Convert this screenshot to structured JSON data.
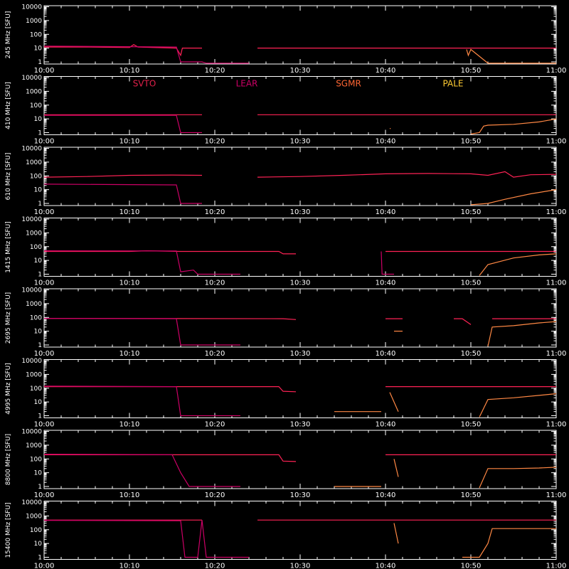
{
  "chart_data": {
    "type": "line",
    "x_ticks": [
      "10:00",
      "10:10",
      "10:20",
      "10:30",
      "10:40",
      "10:50",
      "11:00"
    ],
    "x_range_minutes": [
      0,
      60
    ],
    "y_ticks": [
      "1",
      "10",
      "100",
      "1000",
      "10000"
    ],
    "y_scale": "log",
    "ylim": [
      0.7,
      12000
    ],
    "legend": {
      "placement": "top",
      "entries": [
        {
          "name": "SVTO",
          "color": "#e0204a"
        },
        {
          "name": "LEAR",
          "color": "#cc0066"
        },
        {
          "name": "SGMR",
          "color": "#ff6633"
        },
        {
          "name": "PALE",
          "color": "#ffcc33"
        }
      ]
    },
    "panels": [
      {
        "ylabel": "245 MHz [SFU]",
        "series": [
          {
            "name": "SVTO",
            "color": "#ff2255",
            "points": [
              [
                0,
                12
              ],
              [
                5,
                12
              ],
              [
                10,
                11
              ],
              [
                10.5,
                18
              ],
              [
                11,
                12
              ],
              [
                15.5,
                10
              ],
              [
                16,
                3
              ],
              [
                16.2,
                10
              ],
              [
                18.5,
                10
              ],
              [
                19,
                null
              ],
              [
                24.5,
                null
              ],
              [
                25,
                10
              ],
              [
                60,
                10
              ]
            ]
          },
          {
            "name": "LEAR",
            "color": "#cc0066",
            "points": [
              [
                0,
                14
              ],
              [
                15.5,
                12
              ],
              [
                16,
                1
              ],
              [
                17,
                1
              ],
              [
                18.5,
                1
              ],
              [
                19,
                0.8
              ],
              [
                24,
                0.8
              ],
              [
                25,
                null
              ]
            ]
          },
          {
            "name": "PALE",
            "color": "#ff8844",
            "points": [
              [
                49.5,
                8
              ],
              [
                49.7,
                3
              ],
              [
                50,
                8
              ],
              [
                52,
                0.8
              ],
              [
                60,
                0.8
              ]
            ]
          }
        ]
      },
      {
        "ylabel": "410 MHz [SFU]",
        "series": [
          {
            "name": "SVTO",
            "color": "#ff2255",
            "points": [
              [
                0,
                20
              ],
              [
                15.5,
                20
              ],
              [
                16,
                20
              ],
              [
                18.5,
                20
              ],
              [
                19,
                null
              ],
              [
                25,
                20
              ],
              [
                60,
                20
              ]
            ]
          },
          {
            "name": "LEAR",
            "color": "#cc0066",
            "points": [
              [
                0,
                18
              ],
              [
                15.5,
                18
              ],
              [
                16,
                1
              ],
              [
                18.5,
                1
              ],
              [
                19,
                null
              ]
            ]
          },
          {
            "name": "SGMR",
            "color": "#ff8844",
            "points": [
              [
                40.5,
                2
              ],
              [
                40.6,
                2
              ]
            ]
          },
          {
            "name": "PALE",
            "color": "#ff8844",
            "points": [
              [
                50,
                0.8
              ],
              [
                51,
                1
              ],
              [
                51.5,
                3
              ],
              [
                52,
                3.5
              ],
              [
                55,
                4
              ],
              [
                58,
                6
              ],
              [
                60,
                10
              ]
            ]
          }
        ]
      },
      {
        "ylabel": "610 MHz [SFU]",
        "series": [
          {
            "name": "SVTO",
            "color": "#ff2255",
            "points": [
              [
                0,
                80
              ],
              [
                5,
                90
              ],
              [
                10,
                110
              ],
              [
                15,
                115
              ],
              [
                18.5,
                110
              ],
              [
                19,
                null
              ],
              [
                25,
                80
              ],
              [
                30,
                90
              ],
              [
                35,
                110
              ],
              [
                40,
                140
              ],
              [
                45,
                150
              ],
              [
                50,
                140
              ],
              [
                52,
                110
              ],
              [
                54,
                200
              ],
              [
                55,
                80
              ],
              [
                57,
                120
              ],
              [
                60,
                130
              ]
            ]
          },
          {
            "name": "LEAR",
            "color": "#cc0066",
            "points": [
              [
                0,
                25
              ],
              [
                15.5,
                22
              ],
              [
                16,
                1
              ],
              [
                18.5,
                1
              ],
              [
                19,
                null
              ]
            ]
          },
          {
            "name": "PALE",
            "color": "#ff8844",
            "points": [
              [
                50,
                0.8
              ],
              [
                52,
                1
              ],
              [
                54,
                2
              ],
              [
                57,
                5
              ],
              [
                60,
                10
              ]
            ]
          }
        ]
      },
      {
        "ylabel": "1415 MHz [SFU]",
        "series": [
          {
            "name": "SVTO",
            "color": "#ff2255",
            "points": [
              [
                0,
                45
              ],
              [
                10,
                45
              ],
              [
                12,
                50
              ],
              [
                16,
                45
              ],
              [
                27.5,
                45
              ],
              [
                28,
                30
              ],
              [
                29.5,
                30
              ],
              [
                30,
                null
              ],
              [
                39.5,
                null
              ],
              [
                40,
                45
              ],
              [
                60,
                45
              ]
            ]
          },
          {
            "name": "LEAR",
            "color": "#cc0066",
            "points": [
              [
                0,
                50
              ],
              [
                15.5,
                48
              ],
              [
                16,
                1.5
              ],
              [
                17.5,
                2
              ],
              [
                18,
                1
              ],
              [
                23,
                1
              ],
              [
                24,
                null
              ],
              [
                39.5,
                45
              ],
              [
                39.6,
                1
              ],
              [
                41,
                1
              ],
              [
                41.2,
                null
              ]
            ]
          },
          {
            "name": "PALE",
            "color": "#ff8844",
            "points": [
              [
                51,
                0.8
              ],
              [
                52,
                5
              ],
              [
                55,
                15
              ],
              [
                58,
                25
              ],
              [
                60,
                30
              ]
            ]
          }
        ]
      },
      {
        "ylabel": "2695 MHz [SFU]",
        "series": [
          {
            "name": "SVTO",
            "color": "#ff2255",
            "points": [
              [
                0,
                85
              ],
              [
                28,
                80
              ],
              [
                29.5,
                70
              ],
              [
                30,
                null
              ],
              [
                39.5,
                null
              ],
              [
                40,
                80
              ],
              [
                42,
                80
              ],
              [
                42.5,
                null
              ],
              [
                47.5,
                null
              ],
              [
                48,
                80
              ],
              [
                49,
                80
              ],
              [
                50,
                30
              ],
              [
                50.5,
                null
              ],
              [
                52,
                null
              ],
              [
                52.5,
                80
              ],
              [
                60,
                80
              ]
            ]
          },
          {
            "name": "LEAR",
            "color": "#cc0066",
            "points": [
              [
                0,
                85
              ],
              [
                15.5,
                80
              ],
              [
                16,
                1
              ],
              [
                23,
                1
              ],
              [
                24,
                null
              ]
            ]
          },
          {
            "name": "SGMR",
            "color": "#ff8844",
            "points": [
              [
                41,
                10
              ],
              [
                42,
                10
              ]
            ]
          },
          {
            "name": "PALE",
            "color": "#ff8844",
            "points": [
              [
                52,
                0.8
              ],
              [
                52.5,
                20
              ],
              [
                55,
                25
              ],
              [
                58,
                40
              ],
              [
                60,
                50
              ]
            ]
          }
        ]
      },
      {
        "ylabel": "4995 MHz [SFU]",
        "series": [
          {
            "name": "SVTO",
            "color": "#ff2255",
            "points": [
              [
                0,
                130
              ],
              [
                27.5,
                130
              ],
              [
                28,
                60
              ],
              [
                29.5,
                55
              ],
              [
                30,
                null
              ],
              [
                39.5,
                null
              ],
              [
                40,
                130
              ],
              [
                60,
                130
              ]
            ]
          },
          {
            "name": "LEAR",
            "color": "#cc0066",
            "points": [
              [
                0,
                140
              ],
              [
                15.5,
                130
              ],
              [
                16,
                1
              ],
              [
                23,
                1
              ],
              [
                24,
                null
              ]
            ]
          },
          {
            "name": "SGMR",
            "color": "#ff8844",
            "points": [
              [
                34,
                2
              ],
              [
                39.5,
                2
              ],
              [
                40,
                null
              ],
              [
                40.5,
                50
              ],
              [
                41.5,
                2
              ],
              [
                42,
                null
              ]
            ]
          },
          {
            "name": "PALE",
            "color": "#ff8844",
            "points": [
              [
                51,
                0.8
              ],
              [
                52,
                15
              ],
              [
                55,
                20
              ],
              [
                58,
                30
              ],
              [
                60,
                40
              ]
            ]
          }
        ]
      },
      {
        "ylabel": "8800 MHz [SFU]",
        "series": [
          {
            "name": "SVTO",
            "color": "#ff2255",
            "points": [
              [
                0,
                200
              ],
              [
                27.5,
                200
              ],
              [
                28,
                70
              ],
              [
                29.5,
                65
              ],
              [
                30,
                null
              ],
              [
                39.5,
                null
              ],
              [
                40,
                200
              ],
              [
                60,
                200
              ]
            ]
          },
          {
            "name": "LEAR",
            "color": "#cc0066",
            "points": [
              [
                0,
                220
              ],
              [
                15,
                200
              ],
              [
                16,
                10
              ],
              [
                17,
                1
              ],
              [
                23,
                1
              ],
              [
                24,
                null
              ]
            ]
          },
          {
            "name": "SGMR",
            "color": "#ff8844",
            "points": [
              [
                34,
                1
              ],
              [
                39.5,
                1
              ],
              [
                40,
                null
              ],
              [
                41,
                100
              ],
              [
                41.5,
                5
              ],
              [
                42,
                null
              ]
            ]
          },
          {
            "name": "PALE",
            "color": "#ff8844",
            "points": [
              [
                51,
                0.8
              ],
              [
                52,
                20
              ],
              [
                55,
                20
              ],
              [
                58,
                22
              ],
              [
                60,
                25
              ]
            ]
          }
        ]
      },
      {
        "ylabel": "15400 MHz [SFU]",
        "series": [
          {
            "name": "SVTO",
            "color": "#ff2255",
            "points": [
              [
                0,
                500
              ],
              [
                16,
                500
              ],
              [
                18.5,
                500
              ],
              [
                19,
                null
              ],
              [
                25,
                500
              ],
              [
                60,
                500
              ]
            ]
          },
          {
            "name": "LEAR",
            "color": "#cc0066",
            "points": [
              [
                0,
                480
              ],
              [
                16,
                450
              ],
              [
                16.5,
                1
              ],
              [
                18,
                1
              ],
              [
                18.5,
                500
              ],
              [
                19,
                1
              ],
              [
                24,
                1
              ],
              [
                24.5,
                null
              ]
            ]
          },
          {
            "name": "SGMR",
            "color": "#ff8844",
            "points": [
              [
                41,
                300
              ],
              [
                41.5,
                10
              ],
              [
                42,
                null
              ]
            ]
          },
          {
            "name": "PALE",
            "color": "#ff8844",
            "points": [
              [
                49,
                1
              ],
              [
                51,
                1
              ],
              [
                52,
                10
              ],
              [
                52.5,
                120
              ],
              [
                56,
                120
              ],
              [
                60,
                120
              ]
            ]
          }
        ]
      }
    ]
  }
}
